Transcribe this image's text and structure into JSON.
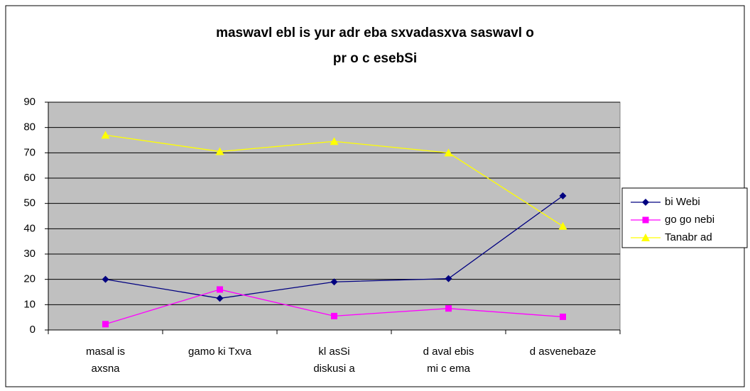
{
  "chart_data": {
    "type": "line",
    "title": [
      "maswavl ebl is yur adr eba sxvadasxva saswavl o",
      "pr o c esebSi"
    ],
    "categories": [
      "masal is\naxsna",
      "gamo ki Txva",
      "kl asSi\ndiskusi a",
      "d aval ebis\nmi c ema",
      "d asvenebaze"
    ],
    "series": [
      {
        "name": "bi Webi",
        "color": "#000080",
        "marker": "diamond",
        "values": [
          20,
          12.5,
          19,
          20.3,
          53
        ]
      },
      {
        "name": "go go nebi",
        "color": "#ff00ff",
        "marker": "square",
        "values": [
          2.3,
          16,
          5.5,
          8.5,
          5.2
        ]
      },
      {
        "name": "Tanabr ad",
        "color": "#ffff00",
        "marker": "triangle",
        "values": [
          77,
          70.5,
          74.5,
          70,
          41
        ]
      }
    ],
    "ylim": [
      0,
      90
    ],
    "yticks": [
      0,
      10,
      20,
      30,
      40,
      50,
      60,
      70,
      80,
      90
    ],
    "grid": true,
    "legend": "right"
  }
}
